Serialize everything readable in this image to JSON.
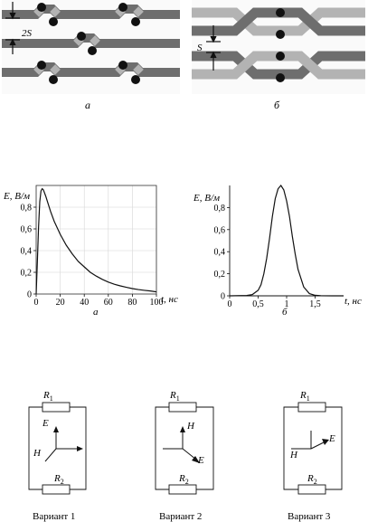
{
  "top_panels": {
    "left": {
      "caption": "а",
      "spacing_label": "2S"
    },
    "right": {
      "caption": "б",
      "spacing_label": "S"
    },
    "colors": {
      "dark_wire": "#6e6e6e",
      "light_wire": "#b3b3b3",
      "dot": "#111111"
    }
  },
  "chart_data": [
    {
      "type": "line",
      "caption": "а",
      "ylabel": "E, В/м",
      "xlabel": "t, нс",
      "xlim": [
        0,
        100
      ],
      "ylim": [
        0,
        1
      ],
      "xticks": [
        0,
        20,
        40,
        60,
        80,
        100
      ],
      "yticks": [
        0,
        0.2,
        0.4,
        0.6,
        0.8
      ],
      "ytick_labels": [
        "0",
        "0,2",
        "0,4",
        "0,6",
        "0,8"
      ],
      "grid": true,
      "series": [
        {
          "x": [
            0,
            1,
            2,
            3,
            4,
            5,
            6,
            8,
            10,
            12,
            15,
            20,
            25,
            30,
            35,
            40,
            45,
            50,
            55,
            60,
            65,
            70,
            75,
            80,
            85,
            90,
            95,
            100
          ],
          "y": [
            0,
            0.3,
            0.62,
            0.85,
            0.95,
            0.97,
            0.96,
            0.9,
            0.83,
            0.76,
            0.67,
            0.55,
            0.45,
            0.37,
            0.3,
            0.25,
            0.2,
            0.165,
            0.135,
            0.11,
            0.09,
            0.075,
            0.062,
            0.05,
            0.041,
            0.034,
            0.028,
            0.02
          ]
        }
      ]
    },
    {
      "type": "line",
      "caption": "б",
      "ylabel": "E, В/м",
      "xlabel": "t, нс",
      "xlim": [
        0,
        2
      ],
      "ylim": [
        0,
        1
      ],
      "xticks": [
        0,
        0.5,
        1,
        1.5
      ],
      "xtick_labels": [
        "0",
        "0,5",
        "1",
        "1,5"
      ],
      "yticks": [
        0,
        0.2,
        0.4,
        0.6,
        0.8
      ],
      "ytick_labels": [
        "0",
        "0,2",
        "0,4",
        "0,6",
        "0,8"
      ],
      "grid": false,
      "series": [
        {
          "x": [
            0,
            0.3,
            0.4,
            0.5,
            0.55,
            0.6,
            0.65,
            0.7,
            0.75,
            0.8,
            0.85,
            0.9,
            0.95,
            1.0,
            1.05,
            1.1,
            1.15,
            1.2,
            1.3,
            1.4,
            1.5,
            1.6,
            1.8,
            2.0
          ],
          "y": [
            0,
            0.003,
            0.012,
            0.05,
            0.1,
            0.2,
            0.34,
            0.52,
            0.72,
            0.88,
            0.97,
            1.0,
            0.96,
            0.86,
            0.72,
            0.54,
            0.38,
            0.24,
            0.08,
            0.02,
            0.005,
            0.001,
            0,
            0
          ]
        }
      ]
    }
  ],
  "variants": [
    {
      "caption": "Вариант 1",
      "R_top": "R",
      "R_top_sub": "1",
      "R_bot": "R",
      "R_bot_sub": "2",
      "up_label": "E",
      "side_label": "H",
      "diag_label": ""
    },
    {
      "caption": "Вариант 2",
      "R_top": "R",
      "R_top_sub": "1",
      "R_bot": "R",
      "R_bot_sub": "2",
      "up_label": "H",
      "side_label": "",
      "diag_label": "E"
    },
    {
      "caption": "Вариант 3",
      "R_top": "R",
      "R_top_sub": "1",
      "R_bot": "R",
      "R_bot_sub": "2",
      "up_label": "",
      "side_label": "H",
      "diag_label": "E"
    }
  ]
}
